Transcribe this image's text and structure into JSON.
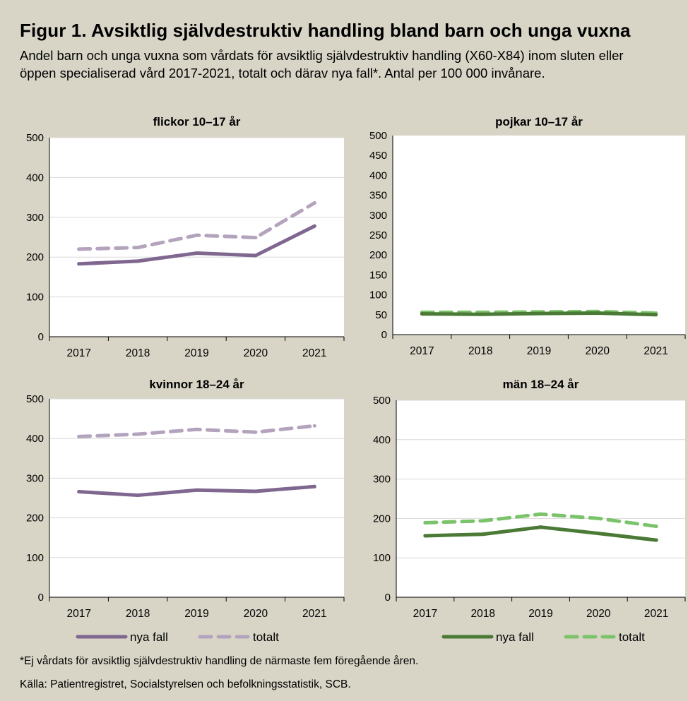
{
  "figure": {
    "title": "Figur 1. Avsiktlig självdestruktiv handling bland barn och unga vuxna",
    "subtitle": "Andel barn och unga vuxna som vårdats för avsiktlig självdestruktiv handling (X60-X84) inom sluten eller öppen specialiserad vård 2017-2021, totalt och därav nya fall*. Antal per 100 000 invånare.",
    "footnote": "*Ej vårdats för avsiktlig självdestruktiv handling de närmaste fem föregående åren.",
    "source": "Källa: Patientregistret, Socialstyrelsen och befolkningsstatistik, SCB."
  },
  "colors": {
    "female_new": "#7f6790",
    "female_total": "#b3a3bd",
    "male_new": "#4a7a35",
    "male_total": "#7bc36b",
    "background": "#d8d5c7"
  },
  "legends": {
    "female": [
      "nya fall",
      "totalt"
    ],
    "male": [
      "nya fall",
      "totalt"
    ]
  },
  "chart_data": [
    {
      "id": "girls",
      "type": "line",
      "title": "flickor 10–17 år",
      "categories": [
        "2017",
        "2018",
        "2019",
        "2020",
        "2021"
      ],
      "ylim": [
        0,
        500
      ],
      "yticks": [
        0,
        100,
        200,
        300,
        400,
        500
      ],
      "grid": true,
      "series": [
        {
          "name": "nya fall",
          "values": [
            183,
            190,
            210,
            204,
            278
          ]
        },
        {
          "name": "totalt",
          "values": [
            220,
            224,
            255,
            249,
            336
          ]
        }
      ]
    },
    {
      "id": "boys",
      "type": "line",
      "title": "pojkar 10–17 år",
      "categories": [
        "2017",
        "2018",
        "2019",
        "2020",
        "2021"
      ],
      "ylim": [
        0,
        500
      ],
      "yticks": [
        0,
        50,
        100,
        150,
        200,
        250,
        300,
        350,
        400,
        450,
        500
      ],
      "grid": false,
      "series": [
        {
          "name": "nya fall",
          "values": [
            52,
            51,
            53,
            54,
            50
          ]
        },
        {
          "name": "totalt",
          "values": [
            56,
            56,
            57,
            58,
            54
          ]
        }
      ]
    },
    {
      "id": "women",
      "type": "line",
      "title": "kvinnor 18–24 år",
      "categories": [
        "2017",
        "2018",
        "2019",
        "2020",
        "2021"
      ],
      "ylim": [
        0,
        500
      ],
      "yticks": [
        0,
        100,
        200,
        300,
        400,
        500
      ],
      "grid": true,
      "series": [
        {
          "name": "nya fall",
          "values": [
            266,
            257,
            270,
            267,
            279
          ]
        },
        {
          "name": "totalt",
          "values": [
            405,
            411,
            423,
            416,
            432
          ]
        }
      ]
    },
    {
      "id": "men",
      "type": "line",
      "title": "män 18–24 år",
      "categories": [
        "2017",
        "2018",
        "2019",
        "2020",
        "2021"
      ],
      "ylim": [
        0,
        500
      ],
      "yticks": [
        0,
        100,
        200,
        300,
        400,
        500
      ],
      "grid": true,
      "series": [
        {
          "name": "nya fall",
          "values": [
            156,
            160,
            178,
            162,
            145
          ]
        },
        {
          "name": "totalt",
          "values": [
            189,
            194,
            211,
            200,
            180
          ]
        }
      ]
    }
  ]
}
